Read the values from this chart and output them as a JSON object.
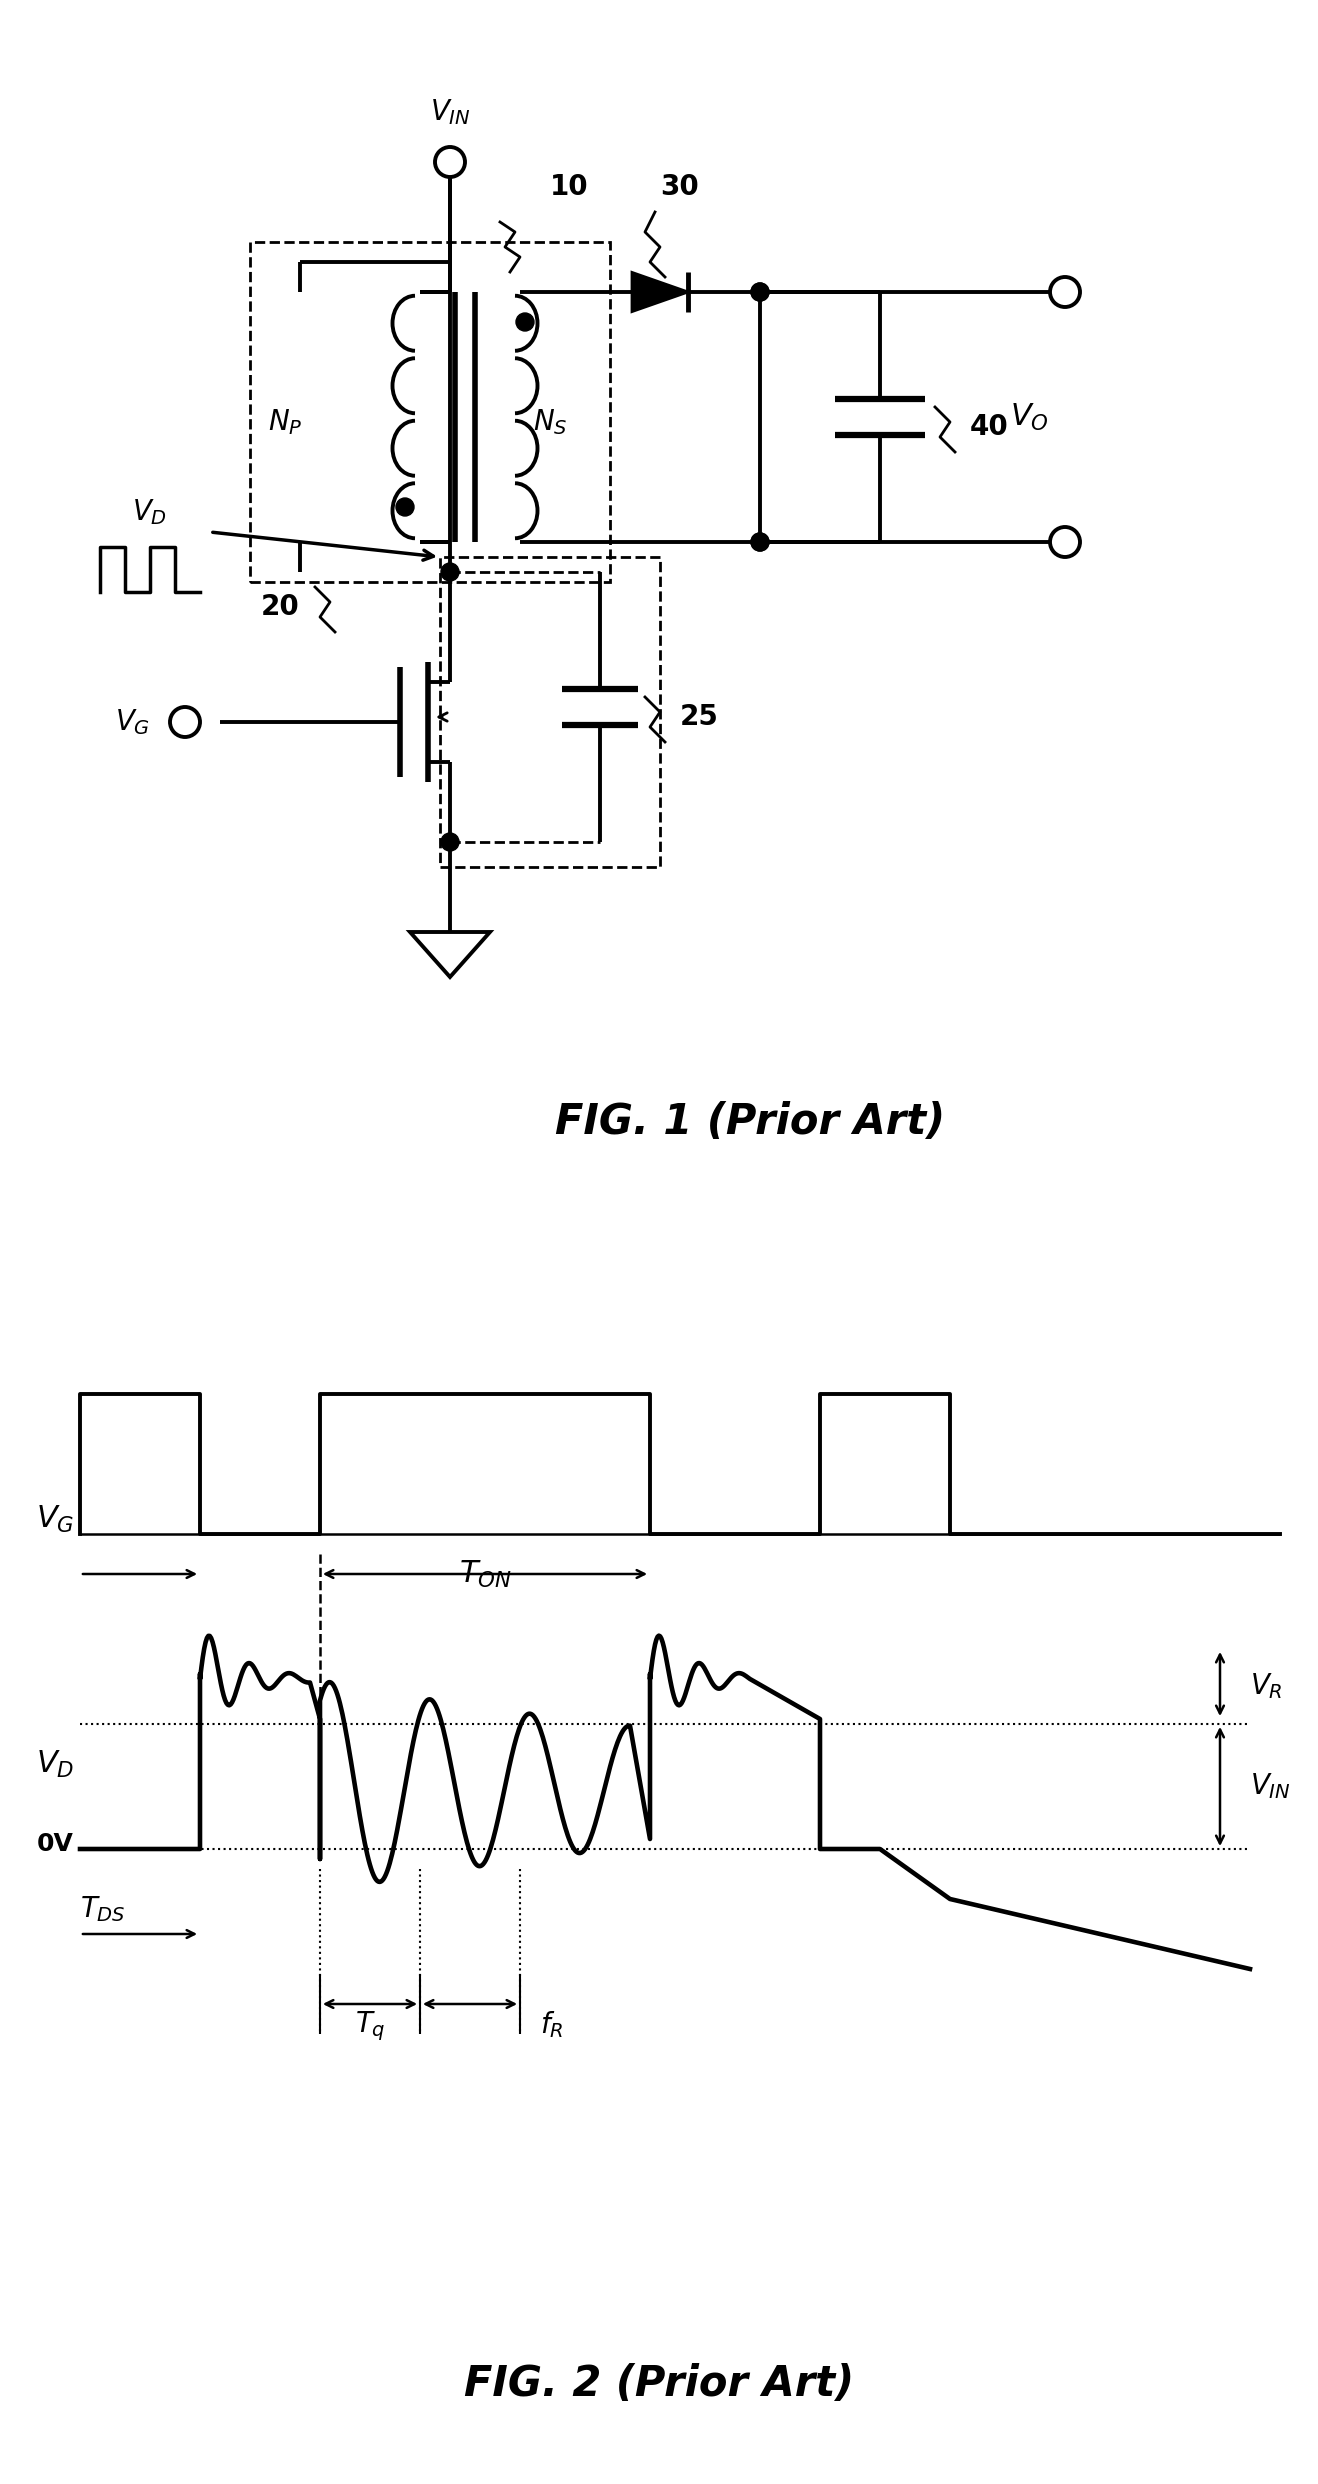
{
  "fig_width": 13.18,
  "fig_height": 24.84,
  "bg_color": "#ffffff",
  "line_color": "#000000",
  "line_width": 2.8,
  "fig1_title": "FIG. 1 (Prior Art)",
  "fig2_title": "FIG. 2 (Prior Art)"
}
